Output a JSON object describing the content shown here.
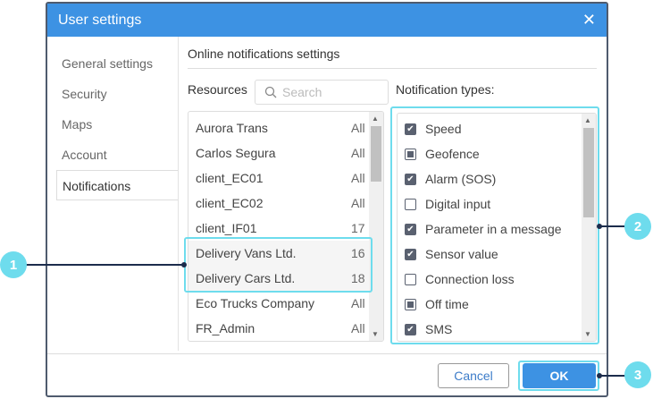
{
  "dialog": {
    "title": "User settings",
    "close_icon": "close-icon"
  },
  "sidebar": {
    "items": [
      {
        "label": "General settings"
      },
      {
        "label": "Security"
      },
      {
        "label": "Maps"
      },
      {
        "label": "Account"
      },
      {
        "label": "Notifications",
        "selected": true
      }
    ]
  },
  "main": {
    "section_title": "Online notifications settings",
    "resources_label": "Resources",
    "search_placeholder": "Search",
    "types_label": "Notification types:",
    "resources": [
      {
        "name": "Aurora Trans",
        "count": "All"
      },
      {
        "name": "Carlos Segura",
        "count": "All"
      },
      {
        "name": "client_EC01",
        "count": "All"
      },
      {
        "name": "client_EC02",
        "count": "All"
      },
      {
        "name": "client_IF01",
        "count": "17"
      },
      {
        "name": "Delivery Vans Ltd.",
        "count": "16",
        "highlighted": true
      },
      {
        "name": "Delivery Cars Ltd.",
        "count": "18",
        "highlighted": true
      },
      {
        "name": "Eco Trucks Company",
        "count": "All"
      },
      {
        "name": "FR_Admin",
        "count": "All"
      }
    ],
    "types": [
      {
        "label": "Speed",
        "state": "checked"
      },
      {
        "label": "Geofence",
        "state": "partial"
      },
      {
        "label": "Alarm (SOS)",
        "state": "checked"
      },
      {
        "label": "Digital input",
        "state": "unchecked"
      },
      {
        "label": "Parameter in a message",
        "state": "checked"
      },
      {
        "label": "Sensor value",
        "state": "checked"
      },
      {
        "label": "Connection loss",
        "state": "unchecked"
      },
      {
        "label": "Off time",
        "state": "partial"
      },
      {
        "label": "SMS",
        "state": "checked"
      }
    ]
  },
  "footer": {
    "cancel": "Cancel",
    "ok": "OK"
  },
  "callouts": [
    "1",
    "2",
    "3"
  ],
  "colors": {
    "header": "#3d92e3",
    "callout": "#6edced"
  }
}
